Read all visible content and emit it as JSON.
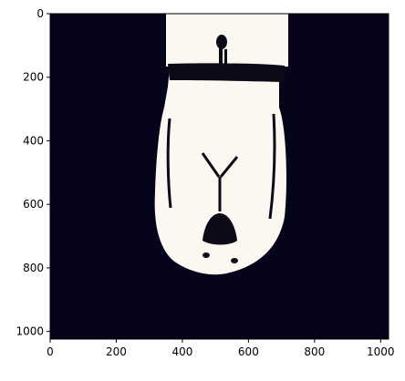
{
  "figure": {
    "image_description_icon": "upside-down-cartoon-face-icon",
    "x_ticks": [
      "0",
      "200",
      "400",
      "600",
      "800",
      "1000"
    ],
    "y_ticks": [
      "0",
      "200",
      "400",
      "600",
      "800",
      "1000"
    ],
    "x_range": [
      0,
      1024
    ],
    "y_range": [
      0,
      1024
    ],
    "colors": {
      "background_dark": "#06041a",
      "face_light": "#fbf7f1",
      "ink": "#0b0a16"
    }
  }
}
